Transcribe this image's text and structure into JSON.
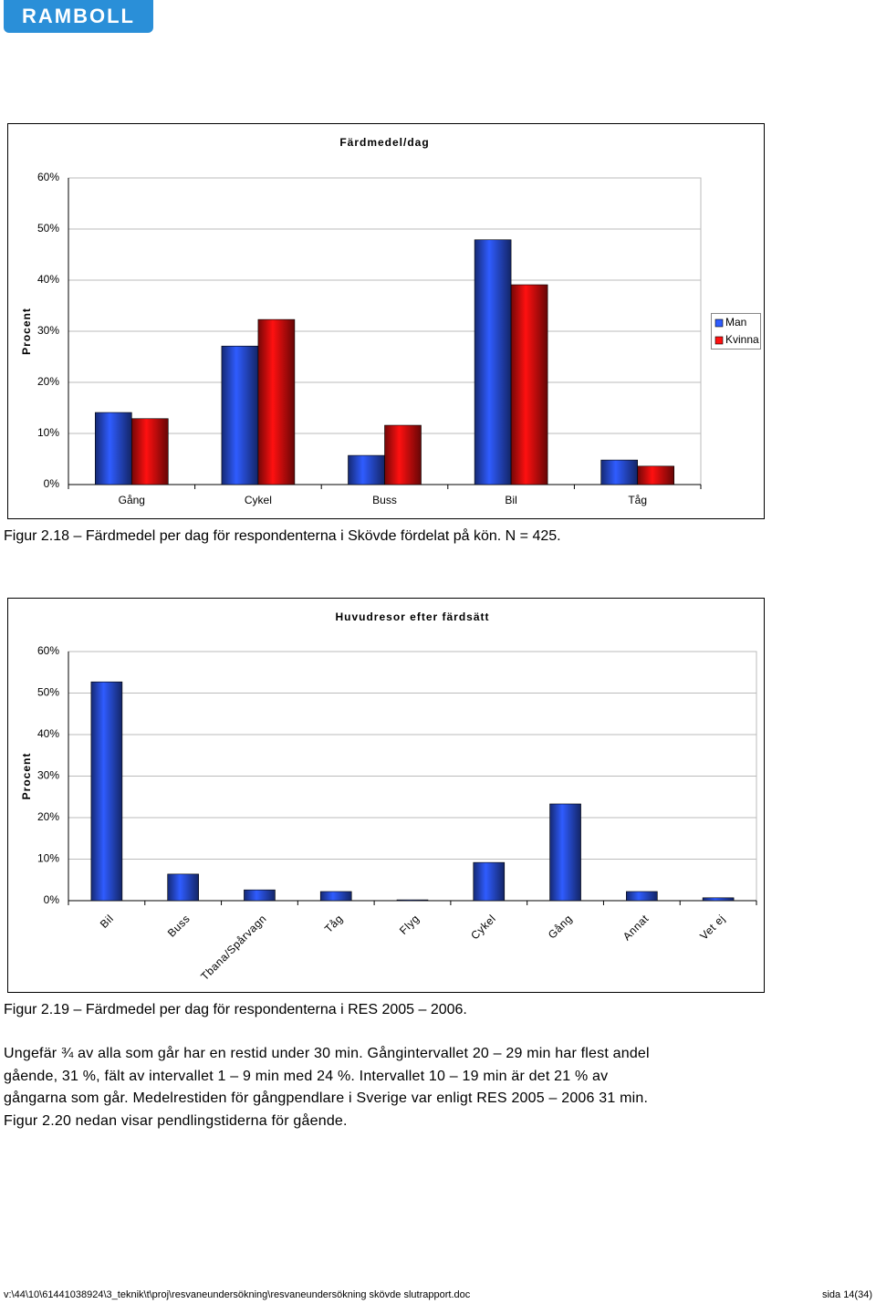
{
  "logo": "RAMBOLL",
  "chart_data": [
    {
      "type": "bar",
      "title": "Färdmedel/dag",
      "ylabel": "Procent",
      "categories": [
        "Gång",
        "Cykel",
        "Buss",
        "Bil",
        "Tåg"
      ],
      "series": [
        {
          "name": "Man",
          "color": "#2f5cff",
          "values": [
            14.1,
            27.1,
            5.7,
            47.9,
            4.8
          ]
        },
        {
          "name": "Kvinna",
          "color": "#ff1010",
          "values": [
            12.9,
            32.3,
            11.6,
            39.1,
            3.6
          ]
        }
      ],
      "ylim": [
        0,
        60
      ],
      "yticks": [
        {
          "value": 0,
          "label": "0%"
        },
        {
          "value": 10,
          "label": "10%"
        },
        {
          "value": 20,
          "label": "20%"
        },
        {
          "value": 30,
          "label": "30%"
        },
        {
          "value": 40,
          "label": "40%"
        },
        {
          "value": 50,
          "label": "50%"
        },
        {
          "value": 60,
          "label": "60%"
        }
      ],
      "grid": true,
      "legend": "right"
    },
    {
      "type": "bar",
      "title": "Huvudresor efter färdsätt",
      "ylabel": "Procent",
      "categories": [
        "Bil",
        "Buss",
        "Tbana/Spårvagn",
        "Tåg",
        "Flyg",
        "Cykel",
        "Gång",
        "Annat",
        "Vet ej"
      ],
      "values": [
        52.7,
        6.4,
        2.6,
        2.2,
        0.2,
        9.2,
        23.3,
        2.2,
        0.7
      ],
      "color": "#2f5cff",
      "ylim": [
        0,
        60
      ],
      "yticks": [
        {
          "value": 0,
          "label": "0%"
        },
        {
          "value": 10,
          "label": "10%"
        },
        {
          "value": 20,
          "label": "20%"
        },
        {
          "value": 30,
          "label": "30%"
        },
        {
          "value": 40,
          "label": "40%"
        },
        {
          "value": 50,
          "label": "50%"
        },
        {
          "value": 60,
          "label": "60%"
        }
      ],
      "grid": true
    }
  ],
  "captions": [
    "Figur 2.18 – Färdmedel per dag för respondenterna i Skövde fördelat på kön. N = 425.",
    "Figur 2.19 – Färdmedel per dag för respondenterna i RES 2005 – 2006."
  ],
  "paragraph": [
    "Ungefär ¾ av alla som går har en restid under 30 min. Gångintervallet 20 – 29 min har flest andel",
    "gående, 31 %, fält av intervallet 1 – 9 min med 24 %. Intervallet 10 – 19 min är det 21 % av",
    "gångarna som går. Medelrestiden för gångpendlare i Sverige var enligt RES 2005 – 2006 31 min.",
    "Figur 2.20 nedan visar pendlingstiderna för gående."
  ],
  "footer": {
    "path": "v:\\44\\10\\61441038924\\3_teknik\\t\\proj\\resvaneundersökning\\resvaneundersökning skövde slutrapport.doc",
    "page": "sida 14(34)"
  }
}
